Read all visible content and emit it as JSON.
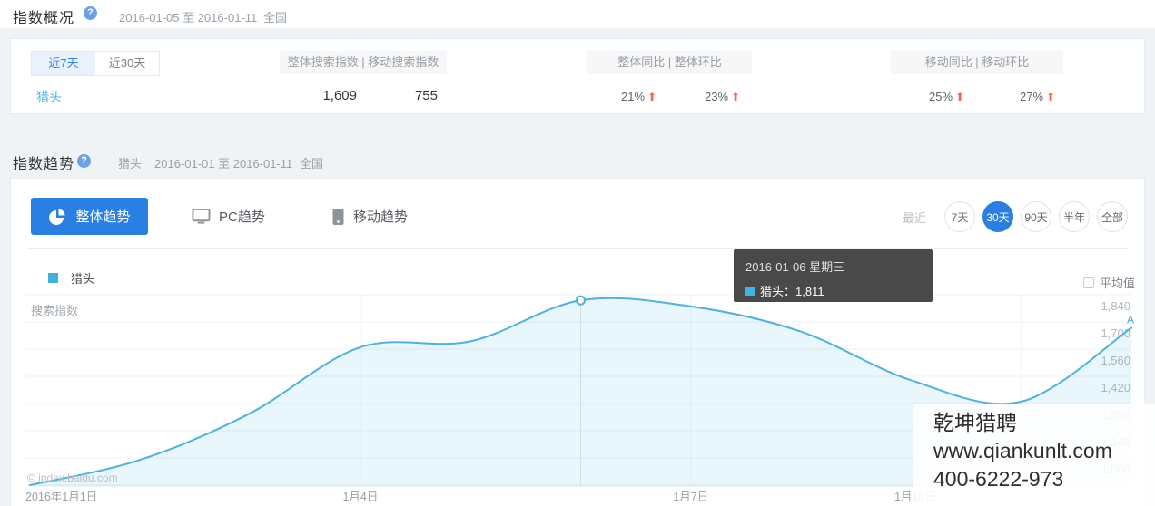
{
  "icons": {
    "help": "?",
    "up_arrow": "⬆"
  },
  "overview": {
    "title": "指数概况",
    "date_range": "2016-01-05 至 2016-01-11",
    "region": "全国",
    "tab_7d": "近7天",
    "tab_30d": "近30天",
    "keyword": "猎头",
    "search_header": "整体搜索指数 | 移动搜索指数",
    "overall_index": "1,609",
    "mobile_index": "755",
    "overall_cmp_header": "整体同比 | 整体环比",
    "overall_yoy": "21%",
    "overall_mom": "23%",
    "mobile_cmp_header": "移动同比 | 移动环比",
    "mobile_yoy": "25%",
    "mobile_mom": "27%"
  },
  "trend": {
    "title": "指数趋势",
    "keyword": "猎头",
    "date_range": "2016-01-01 至 2016-01-11",
    "region": "全国",
    "tab_overall": "整体趋势",
    "tab_pc": "PC趋势",
    "tab_mobile": "移动趋势",
    "recent_label": "最近",
    "ranges": [
      "7天",
      "30天",
      "90天",
      "半年",
      "全部"
    ],
    "active_range": "30天",
    "legend": "猎头",
    "avg_label": "平均值",
    "tooltip": {
      "date": "2016-01-06 星期三",
      "text": "猎头：1,811"
    },
    "copyright": "© index.baidu.com",
    "watermark": {
      "line1": "乾坤猎聘",
      "line2": "www.qiankunlt.com",
      "line3": "400-6222-973"
    }
  },
  "chart_data": {
    "type": "line",
    "title": "",
    "ylabel": "搜索指数",
    "x": [
      "2016-01-01",
      "2016-01-02",
      "2016-01-03",
      "2016-01-04",
      "2016-01-05",
      "2016-01-06",
      "2016-01-07",
      "2016-01-08",
      "2016-01-09",
      "2016-01-10",
      "2016-01-11"
    ],
    "series": [
      {
        "name": "猎头",
        "values": [
          860,
          990,
          1230,
          1570,
          1600,
          1811,
          1780,
          1650,
          1400,
          1290,
          1670
        ]
      }
    ],
    "y_tick_values": [
      1840,
      1700,
      1560,
      1420,
      1280,
      1140,
      1000
    ],
    "y_tick_labels": [
      "1,840",
      "1,700",
      "1,560",
      "1,420",
      "1,280",
      "1,140",
      "1,000"
    ],
    "x_tick_indices": [
      0,
      3,
      6,
      9
    ],
    "x_tick_labels": [
      "2016年1月1日",
      "1月4日",
      "1月7日",
      "1月10日"
    ],
    "highlight_index": 5,
    "highlight_value": 1811,
    "end_marker": "A",
    "line_color": "#4db2e2",
    "fill_color": "rgba(77,178,226,0.12)",
    "grid": true,
    "legend_position": "top-left",
    "ylim": [
      860,
      1840
    ]
  }
}
